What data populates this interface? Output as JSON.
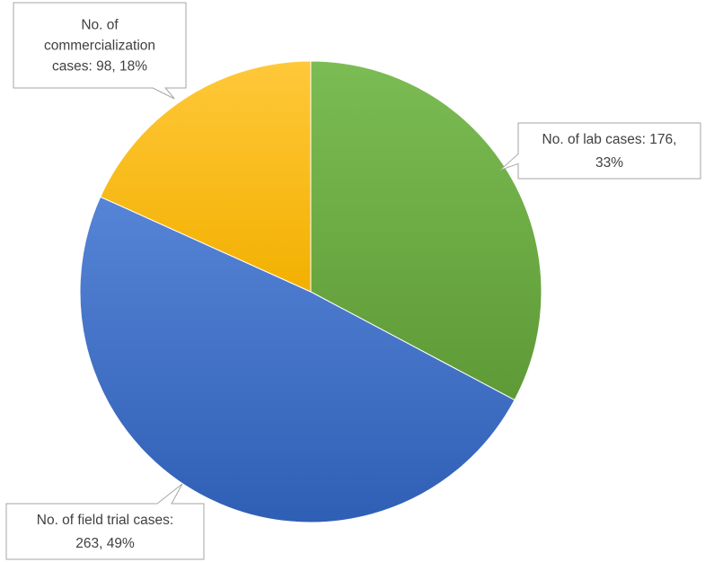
{
  "chart_data": {
    "type": "pie",
    "title": "",
    "slices": [
      {
        "label": "No. of lab cases",
        "value": 176,
        "percent": "33%",
        "color": "#70ad47",
        "label_lines": [
          "No. of lab cases: 176,",
          "33%"
        ]
      },
      {
        "label": "No. of field trial cases",
        "value": 263,
        "percent": "49%",
        "color": "#4472c4",
        "label_lines": [
          "No. of field trial cases:",
          "263, 49%"
        ]
      },
      {
        "label": "No. of commercialization cases",
        "value": 98,
        "percent": "18%",
        "color": "#ffc000",
        "label_lines": [
          "No. of",
          "commercialization",
          "cases: 98, 18%"
        ]
      }
    ],
    "start_angle": "12 o'clock",
    "direction": "clockwise",
    "legend": "none",
    "data_labels": "callouts"
  }
}
